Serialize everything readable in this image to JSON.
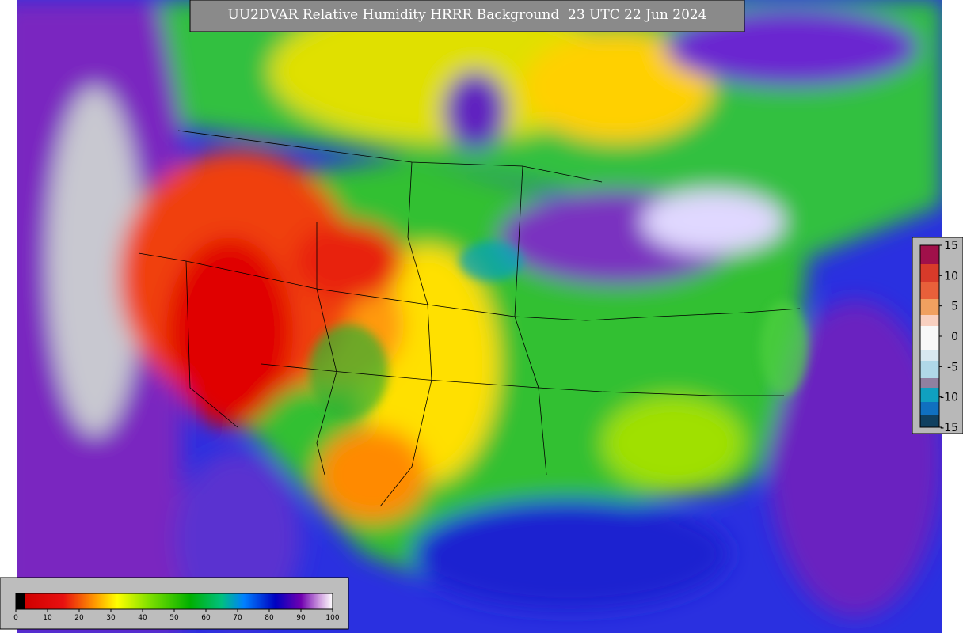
{
  "title": "UU2DVAR Relative Humidity HRRR Background  23 UTC 22 Jun 2024",
  "colorbar": {
    "ticks": [
      0,
      10,
      20,
      30,
      40,
      50,
      60,
      70,
      80,
      90,
      100
    ]
  },
  "increment_colorbar": {
    "ticks": [
      15,
      10,
      5,
      0,
      -5,
      -10,
      -15
    ]
  }
}
